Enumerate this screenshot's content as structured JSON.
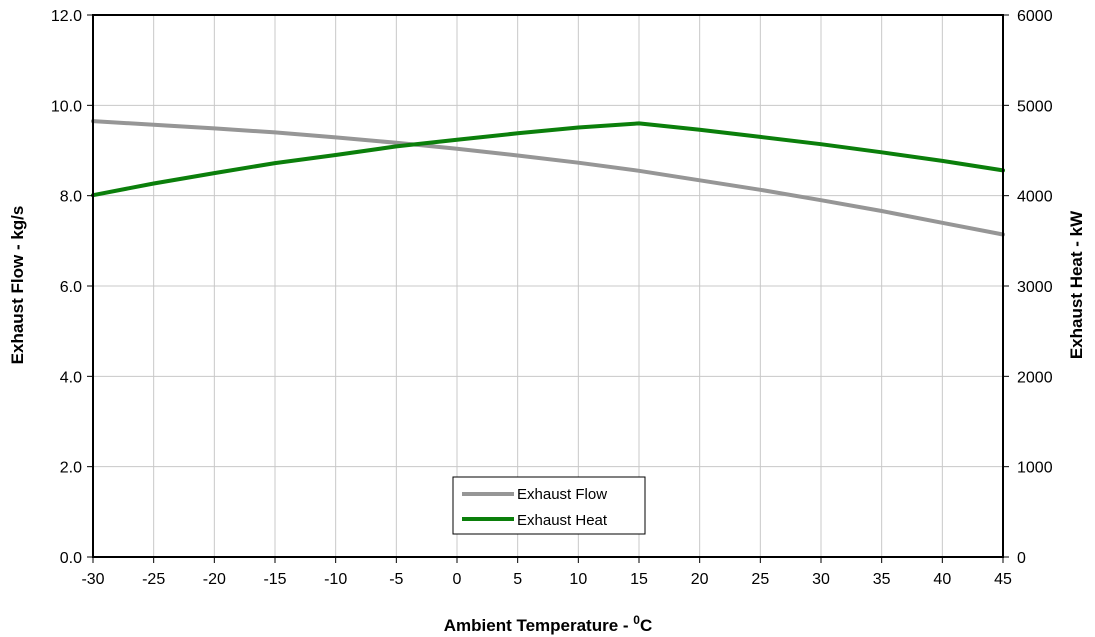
{
  "chart_data": {
    "type": "line",
    "xlabel": "Ambient Temperature - ",
    "xlabel_sup": "0",
    "xlabel_unit": "C",
    "ylabel_left": "Exhaust Flow - kg/s",
    "ylabel_right": "Exhaust Heat - kW",
    "xlim": [
      -30,
      45
    ],
    "ylim_left": [
      0,
      12
    ],
    "ylim_right": [
      0,
      6000
    ],
    "x_ticks": [
      "-30",
      "-25",
      "-20",
      "-15",
      "-10",
      "-5",
      "0",
      "5",
      "10",
      "15",
      "20",
      "25",
      "30",
      "35",
      "40",
      "45"
    ],
    "y_left_ticks": [
      "0.0",
      "2.0",
      "4.0",
      "6.0",
      "8.0",
      "10.0",
      "12.0"
    ],
    "y_right_ticks": [
      "0",
      "1000",
      "2000",
      "3000",
      "4000",
      "5000",
      "6000"
    ],
    "grid": true,
    "legend_position": "bottom-center",
    "series": [
      {
        "name": "Exhaust Flow",
        "axis": "left",
        "color": "#969696",
        "x": [
          -30,
          -25,
          -20,
          -15,
          -10,
          -5,
          0,
          5,
          10,
          15,
          20,
          25,
          30,
          35,
          40,
          45
        ],
        "y": [
          9.65,
          9.57,
          9.49,
          9.4,
          9.29,
          9.17,
          9.04,
          8.89,
          8.73,
          8.55,
          8.34,
          8.13,
          7.9,
          7.66,
          7.4,
          7.14
        ]
      },
      {
        "name": "Exhaust Heat",
        "axis": "right",
        "color": "#0b7f0b",
        "x": [
          -30,
          -25,
          -20,
          -15,
          -10,
          -5,
          0,
          5,
          10,
          15,
          20,
          25,
          30,
          35,
          40,
          45
        ],
        "y": [
          4005,
          4135,
          4250,
          4360,
          4450,
          4545,
          4620,
          4690,
          4755,
          4800,
          4730,
          4650,
          4570,
          4480,
          4385,
          4280
        ]
      }
    ]
  }
}
